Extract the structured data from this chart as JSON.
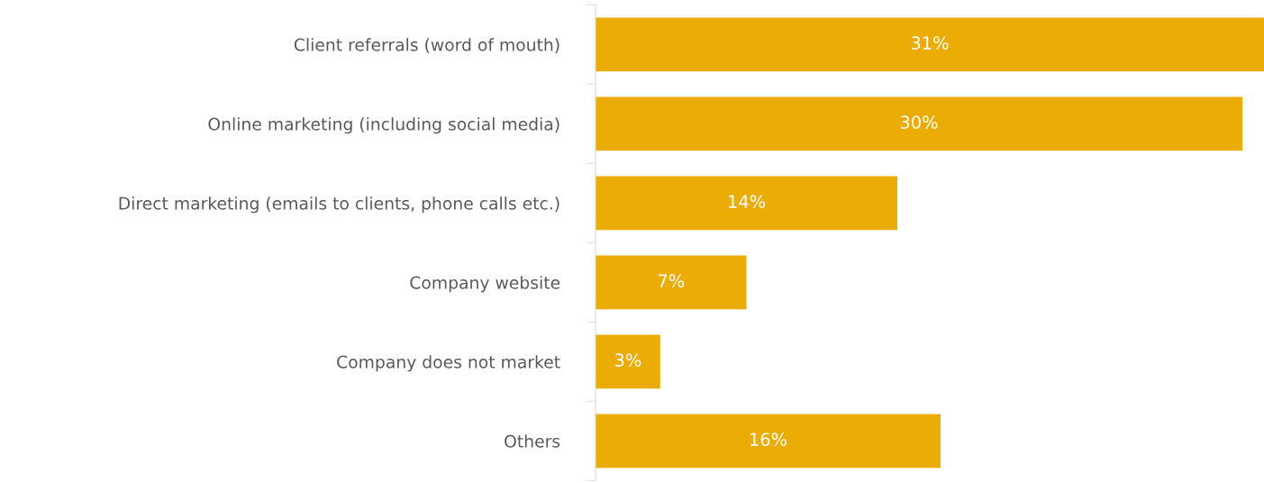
{
  "chart_data": {
    "type": "bar",
    "orientation": "horizontal",
    "categories": [
      "Client referrals (word of mouth)",
      "Online marketing (including social media)",
      "Direct marketing (emails to clients, phone calls etc.)",
      "Company website",
      "Company does not market",
      "Others"
    ],
    "values": [
      31,
      30,
      14,
      7,
      3,
      16
    ],
    "color": "#ebac06",
    "data_labels": true,
    "value_labels": [
      "31%",
      "30%",
      "14%",
      "7%",
      "3%",
      "16%"
    ],
    "grid": false,
    "legend": false
  }
}
